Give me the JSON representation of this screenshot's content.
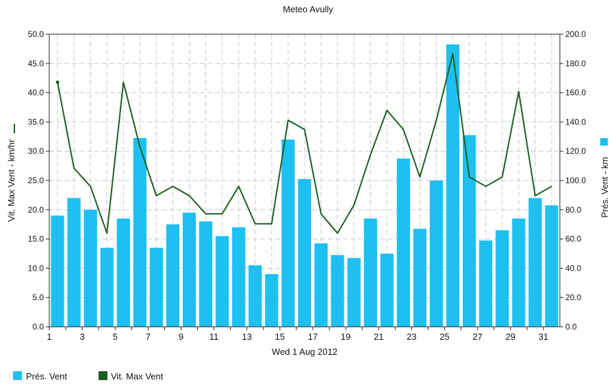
{
  "chart_data": {
    "type": "bar+line",
    "title": "Meteo  Avully",
    "xlabel": "Wed 1 Aug 2012",
    "ylabel_left": "Vit. Max Vent - km/hr",
    "ylabel_right": "Prés. Vent - km",
    "ylim_left": [
      0,
      50
    ],
    "ylim_right": [
      0,
      200
    ],
    "yticks_left": [
      "0.0",
      "5.0",
      "10.0",
      "15.0",
      "20.0",
      "25.0",
      "30.0",
      "35.0",
      "40.0",
      "45.0",
      "50.0"
    ],
    "yticks_right": [
      "0.0",
      "20.0",
      "40.0",
      "60.0",
      "80.0",
      "100.0",
      "120.0",
      "140.0",
      "160.0",
      "180.0",
      "200.0"
    ],
    "xticks": [
      "1",
      "3",
      "5",
      "7",
      "9",
      "11",
      "13",
      "15",
      "17",
      "19",
      "21",
      "23",
      "25",
      "27",
      "29",
      "31"
    ],
    "days": [
      1,
      2,
      3,
      4,
      5,
      6,
      7,
      8,
      9,
      10,
      11,
      12,
      13,
      14,
      15,
      16,
      17,
      18,
      19,
      20,
      21,
      22,
      23,
      24,
      25,
      26,
      27,
      28,
      29,
      30,
      31
    ],
    "grid": true,
    "legend_position": "bottom-left",
    "colors": {
      "bars": "#1ec0f2",
      "line": "#1b5e20",
      "grid": "#c8c8c8"
    },
    "series": [
      {
        "name": "Prés. Vent",
        "kind": "bar",
        "axis": "right",
        "values": [
          76,
          88,
          80,
          54,
          74,
          129,
          54,
          70,
          78,
          72,
          62,
          68,
          42,
          36,
          128,
          101,
          57,
          49,
          47,
          74,
          50,
          115,
          67,
          100,
          193,
          131,
          59,
          66,
          74,
          88,
          83
        ]
      },
      {
        "name": "Vit. Max Vent",
        "kind": "line",
        "axis": "left",
        "values": [
          41.8,
          27.1,
          24.0,
          16.0,
          41.8,
          30.8,
          22.4,
          24.0,
          22.4,
          19.3,
          19.3,
          24.0,
          17.6,
          17.6,
          35.3,
          33.7,
          19.3,
          16.0,
          20.8,
          29.4,
          37.0,
          33.7,
          25.6,
          35.3,
          46.7,
          25.6,
          24.0,
          25.6,
          40.2,
          22.4,
          24.0
        ]
      }
    ]
  }
}
